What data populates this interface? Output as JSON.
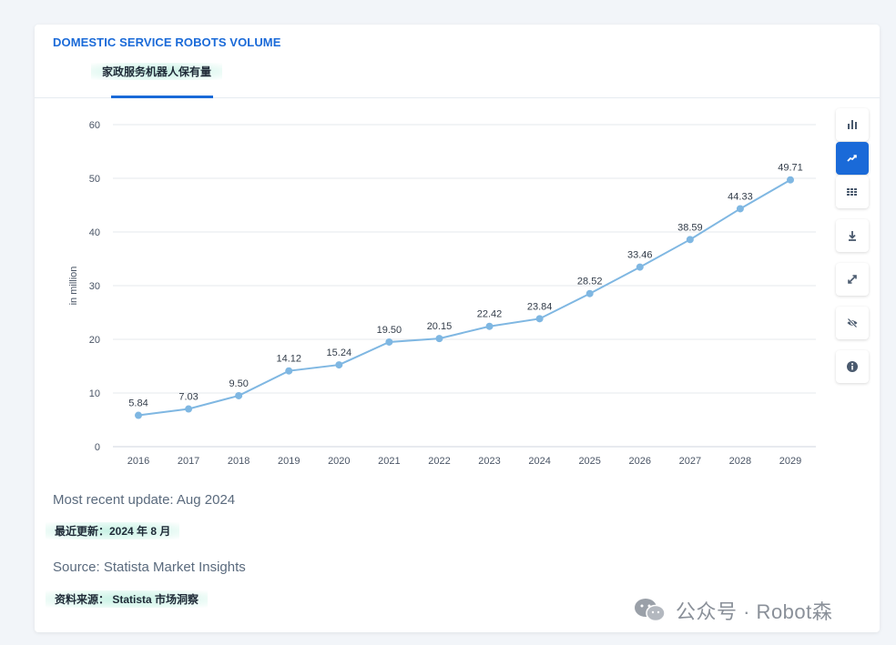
{
  "card": {
    "title": "DOMESTIC SERVICE ROBOTS VOLUME",
    "subtitle": "家政服务机器人保有量"
  },
  "chart_data": {
    "type": "line",
    "title": "",
    "xlabel": "",
    "ylabel": "in million",
    "x": [
      "2016",
      "2017",
      "2018",
      "2019",
      "2020",
      "2021",
      "2022",
      "2023",
      "2024",
      "2025",
      "2026",
      "2027",
      "2028",
      "2029"
    ],
    "series": [
      {
        "values": [
          5.84,
          7.03,
          9.5,
          14.12,
          15.24,
          19.5,
          20.15,
          22.42,
          23.84,
          28.52,
          33.46,
          38.59,
          44.33,
          49.71
        ],
        "labels": [
          "5.84",
          "7.03",
          "9.50",
          "14.12",
          "15.24",
          "19.50",
          "20.15",
          "22.42",
          "23.84",
          "28.52",
          "33.46",
          "38.59",
          "44.33",
          "49.71"
        ]
      }
    ],
    "ylim": [
      0,
      60
    ],
    "yticks": [
      "0",
      "10",
      "20",
      "30",
      "40",
      "50",
      "60"
    ],
    "grid": true,
    "line_color": "#7fb7e2"
  },
  "toolbar": {
    "items": [
      {
        "name": "bar-chart-icon",
        "active": false
      },
      {
        "name": "line-chart-icon",
        "active": true
      },
      {
        "name": "table-icon",
        "active": false
      },
      {
        "name": "download-icon",
        "active": false
      },
      {
        "name": "fullscreen-icon",
        "active": false
      },
      {
        "name": "hide-icon",
        "active": false
      },
      {
        "name": "info-icon",
        "active": false
      }
    ]
  },
  "footer": {
    "update": "Most recent update: Aug 2024",
    "update_cn": "最近更新：2024 年 8 月",
    "source": "Source: Statista Market Insights",
    "source_cn": "资料来源： Statista 市场洞察"
  },
  "watermark": {
    "text": "公众号 · Robot森"
  },
  "colors": {
    "accent": "#1a6ad8",
    "line": "#7fb7e2",
    "grid": "#e4e8ee"
  }
}
